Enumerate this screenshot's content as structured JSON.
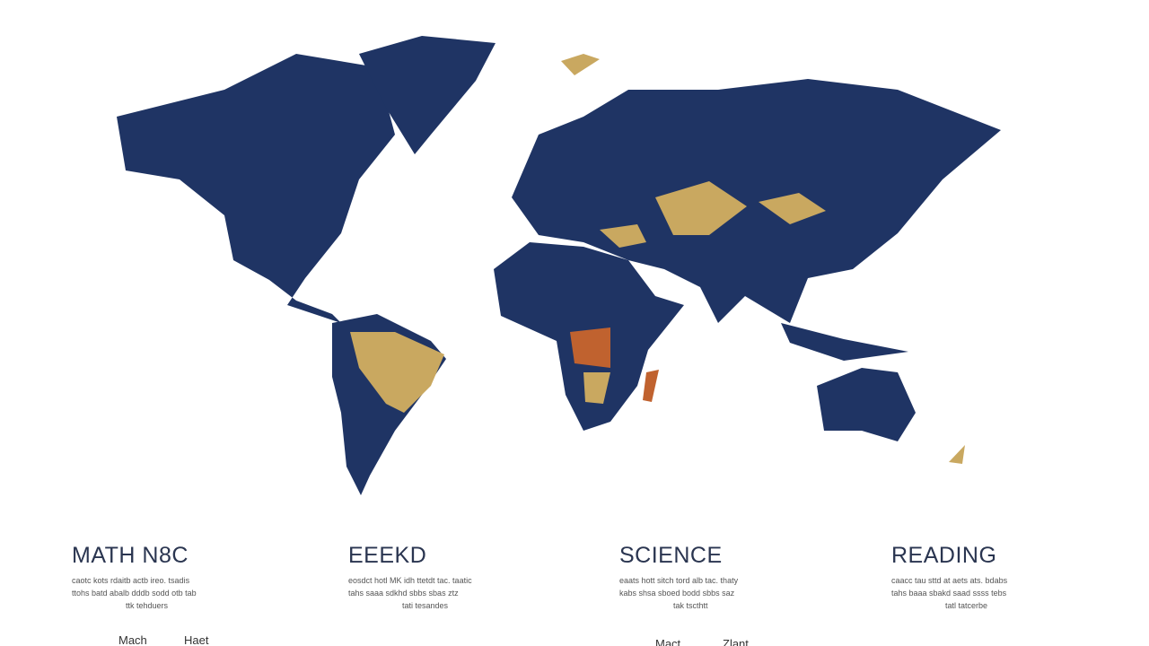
{
  "sections": [
    {
      "title": "MATH N8C",
      "lines": [
        "caotc kots rdaitb actb ireo. tsadis",
        "ttohs batd abalb dddb sodd otb tab",
        "ttk tehduers"
      ]
    },
    {
      "title": "EEEKD",
      "lines": [
        "eosdct hotl MK idh ttetdt tac. taatic",
        "tahs saaa sdkhd sbbs sbas ztz",
        "tati tesandes"
      ]
    },
    {
      "title": "SCIENCE",
      "lines": [
        "eaats hott sitch tord alb tac. thaty",
        "kabs shsa sboed bodd sbbs saz",
        "tak tscthtt"
      ]
    },
    {
      "title": "READING",
      "lines": [
        "caacc tau sttd at aets ats. bdabs",
        "tahs baaa sbakd saad ssss tebs",
        "tatl tatcerbe"
      ]
    }
  ],
  "footer": [
    "Mach",
    "Haet",
    "Mact",
    "Zlant"
  ]
}
